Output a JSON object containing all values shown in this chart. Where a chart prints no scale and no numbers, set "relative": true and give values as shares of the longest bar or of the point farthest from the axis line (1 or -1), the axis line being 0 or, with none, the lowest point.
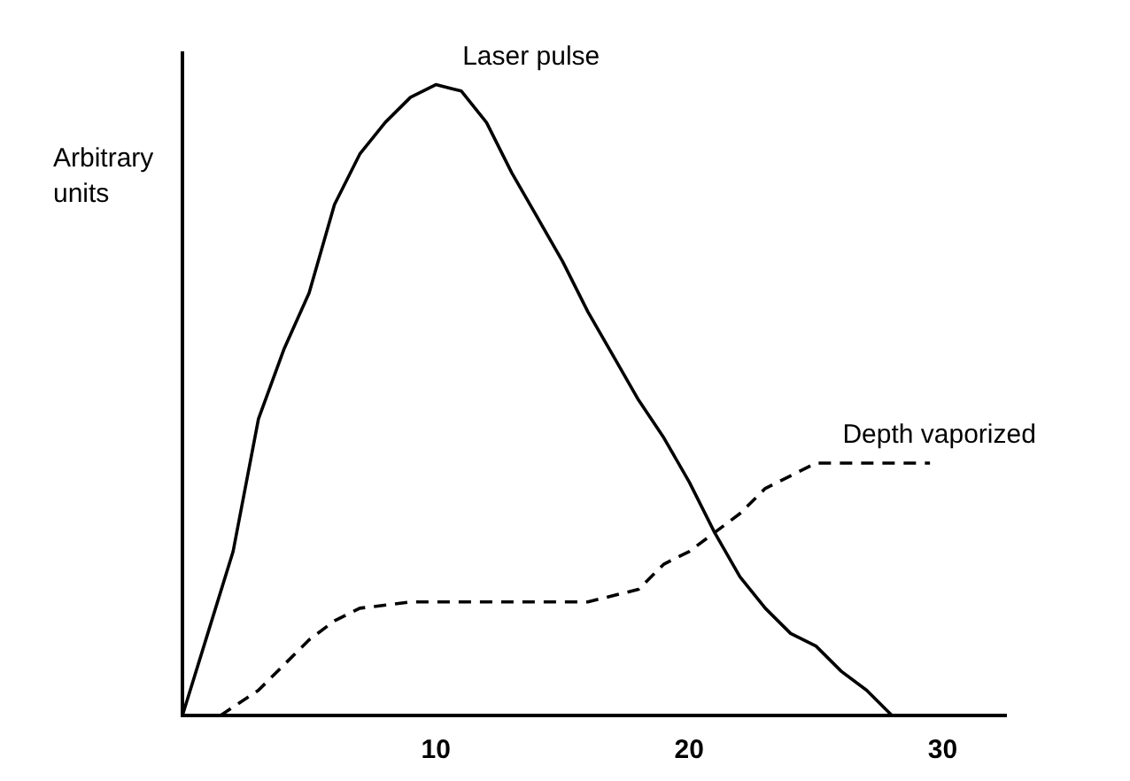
{
  "chart_data": {
    "type": "line",
    "ylabel": "Arbitrary units",
    "relative": true,
    "xlim": [
      0,
      32.5
    ],
    "xticks": [
      10,
      20,
      30
    ],
    "grid": false,
    "legend": false,
    "marker": "none",
    "series": [
      {
        "name": "Laser pulse",
        "color": "#000000",
        "line_style": "solid",
        "x": [
          0,
          1,
          2,
          3,
          4,
          5,
          6,
          7,
          8,
          9,
          10,
          11,
          12,
          13,
          14,
          15,
          16,
          17,
          18,
          19,
          20,
          21,
          22,
          23,
          24,
          25,
          26,
          27,
          28
        ],
        "values": [
          0,
          0.13,
          0.26,
          0.47,
          0.58,
          0.67,
          0.81,
          0.89,
          0.94,
          0.98,
          1,
          0.99,
          0.94,
          0.86,
          0.79,
          0.72,
          0.64,
          0.57,
          0.5,
          0.44,
          0.37,
          0.29,
          0.22,
          0.17,
          0.13,
          0.11,
          0.07,
          0.04,
          0
        ]
      },
      {
        "name": "Depth vaporized",
        "color": "#000000",
        "line_style": "dashed",
        "x": [
          1.5,
          3,
          5,
          6,
          7,
          9,
          13,
          16,
          18,
          19,
          20,
          21,
          22,
          23,
          24,
          25,
          26,
          29.5
        ],
        "values": [
          0,
          0.04,
          0.12,
          0.15,
          0.17,
          0.18,
          0.18,
          0.18,
          0.2,
          0.24,
          0.26,
          0.29,
          0.32,
          0.36,
          0.38,
          0.4,
          0.4,
          0.4
        ]
      }
    ]
  }
}
